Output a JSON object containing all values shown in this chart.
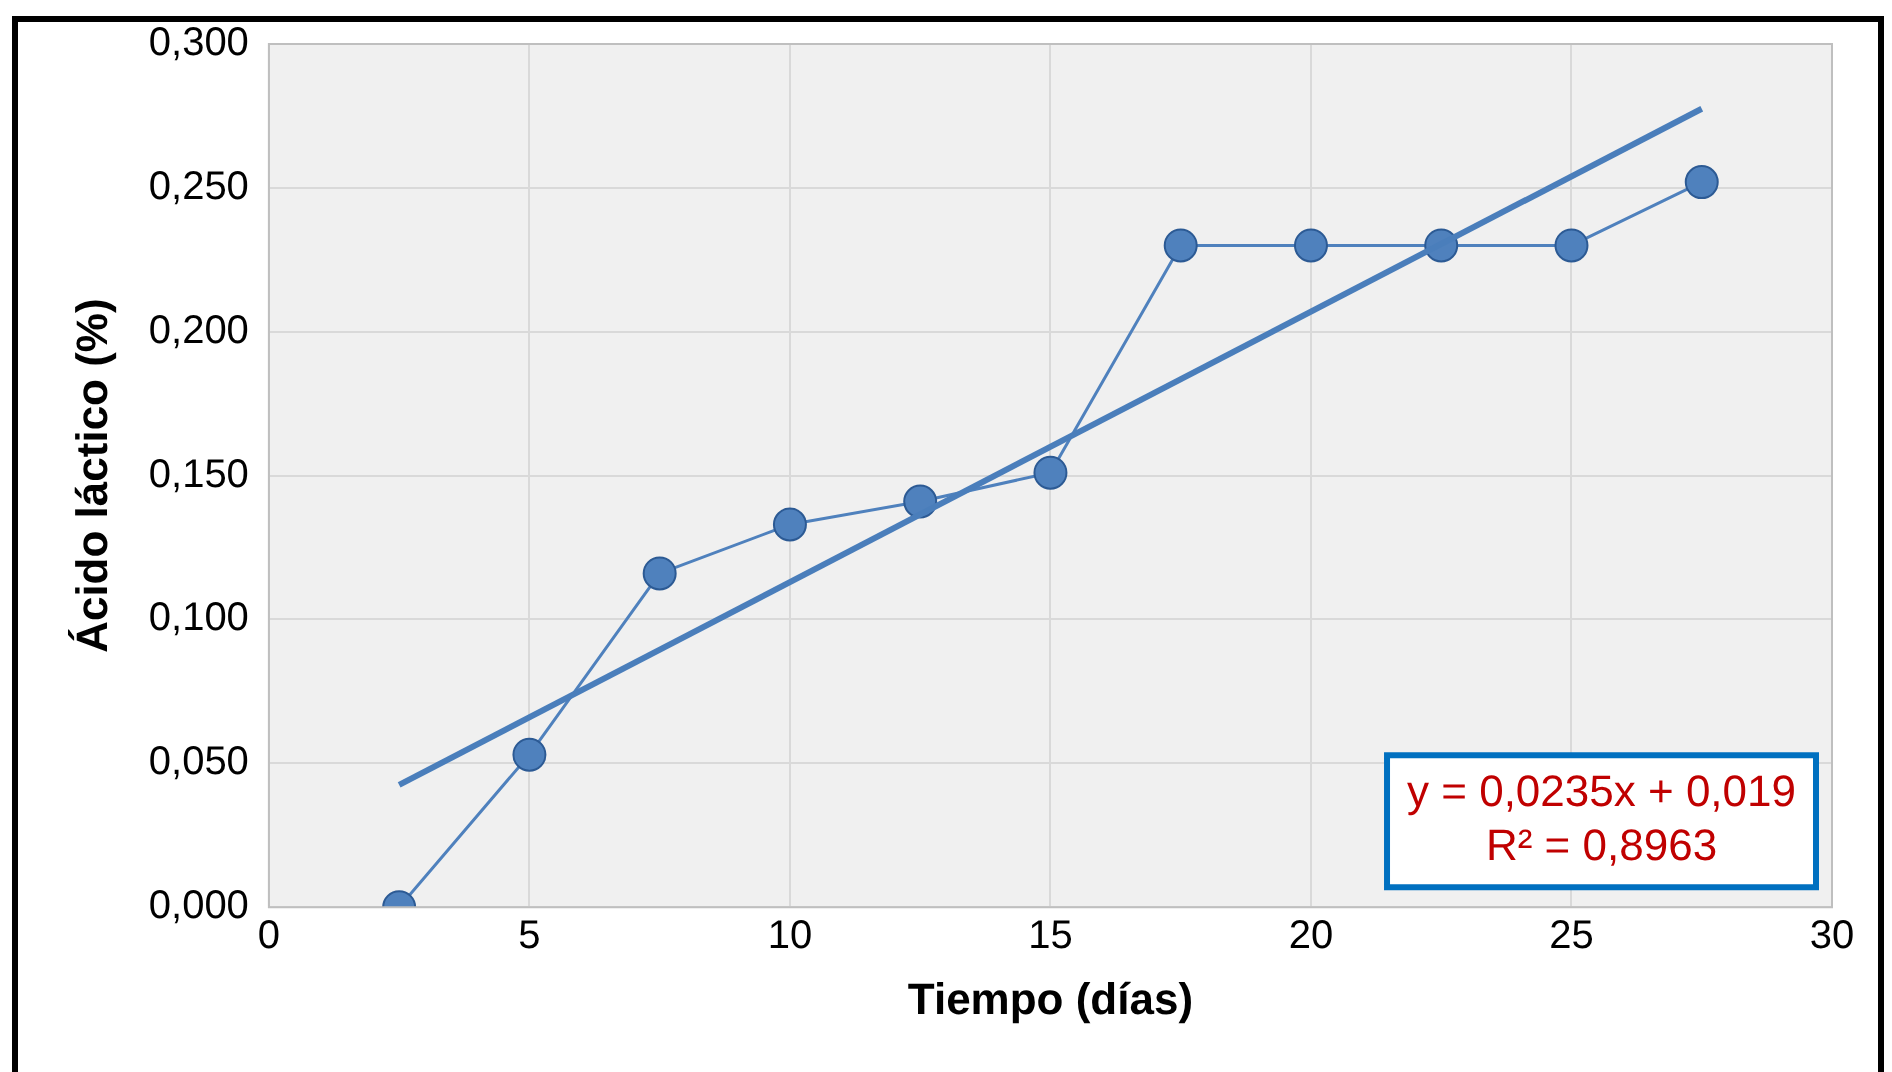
{
  "chart_data": {
    "type": "line",
    "xlabel": "Tiempo (días)",
    "ylabel": "Ácido láctico (%)",
    "x": [
      2.5,
      5,
      7.5,
      10,
      12.5,
      15,
      17.5,
      20,
      22.5,
      25,
      27.5
    ],
    "series": [
      {
        "type": "line",
        "color": "#4f81bd",
        "values": [
          0.0,
          0.053,
          0.116,
          0.133,
          0.141,
          0.151,
          0.23,
          0.23,
          0.23,
          0.23,
          0.252
        ]
      },
      {
        "type": "line",
        "color": "#4a7ebb",
        "marker": "none",
        "x": [
          2.5,
          27.5
        ],
        "values": [
          0.0425,
          0.2775
        ]
      }
    ],
    "xlim": [
      0,
      30
    ],
    "xticks": [
      0,
      5,
      10,
      15,
      20,
      25,
      30
    ],
    "ylim": [
      0,
      0.3
    ],
    "yticks": [
      {
        "value": 0,
        "label": "0,000"
      },
      {
        "value": 0.05,
        "label": "0,050"
      },
      {
        "value": 0.1,
        "label": "0,100"
      },
      {
        "value": 0.15,
        "label": "0,150"
      },
      {
        "value": 0.2,
        "label": "0,200"
      },
      {
        "value": 0.25,
        "label": "0,250"
      },
      {
        "value": 0.3,
        "label": "0,300"
      }
    ],
    "annotations": [
      "y = 0,0235x + 0,019",
      "R² = 0,8963"
    ],
    "grid": true,
    "legend": false,
    "marker": "circle"
  }
}
